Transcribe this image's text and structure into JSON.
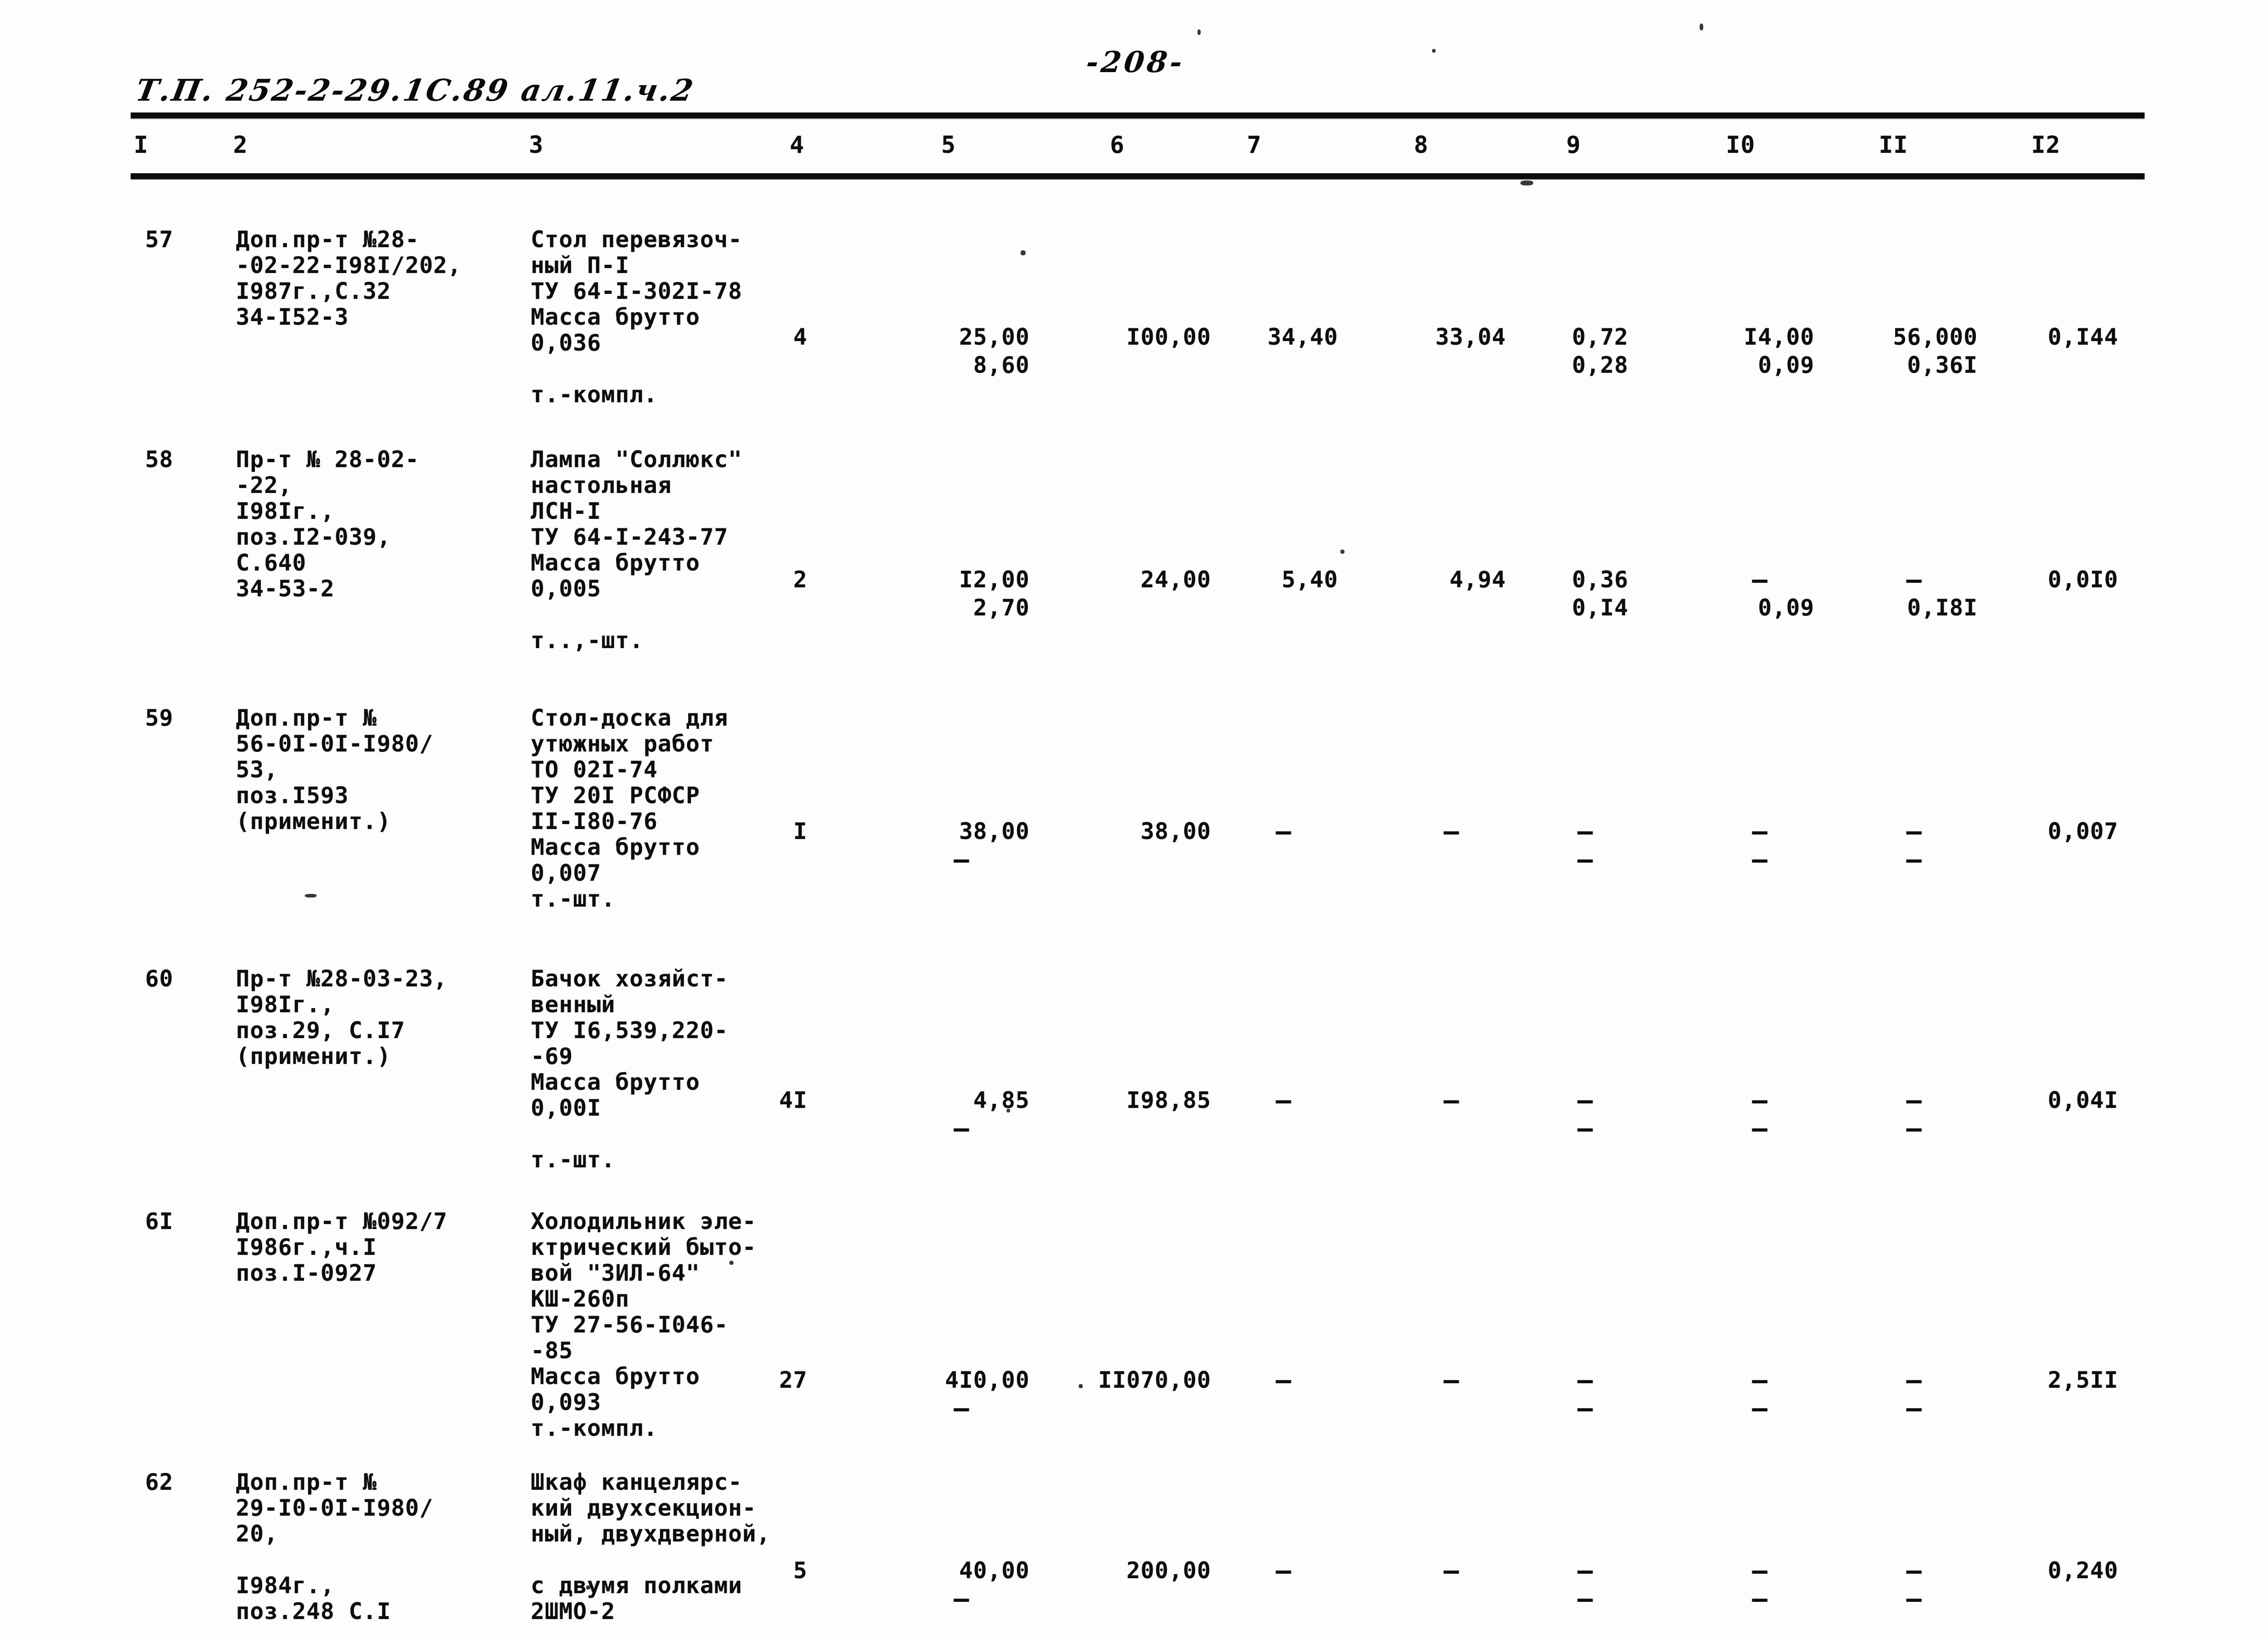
{
  "page": {
    "stamp_text": "Т.П. 252-2-29.1С.89 ал.11.ч.2",
    "page_number": "-208-"
  },
  "table": {
    "column_headers": [
      "I",
      "2",
      "3",
      "4",
      "5",
      "6",
      "7",
      "8",
      "9",
      "I0",
      "II",
      "I2"
    ],
    "rows": [
      {
        "row_number": "57",
        "document_ref": [
          "Доп.пр-т №28-",
          "-02-22-I98I/202,",
          "I987г.,С.32",
          "34-I52-3"
        ],
        "item_description": [
          "Стол перевязоч-",
          "ный П-I",
          "ТУ 64-I-302I-78",
          "Масса брутто",
          "0,036",
          "",
          "т.-компл."
        ],
        "quantity": "4",
        "col5": [
          "25,00",
          "8,60"
        ],
        "col6": [
          "I00,00",
          ""
        ],
        "col7": [
          "34,40",
          ""
        ],
        "col8": [
          "33,04",
          ""
        ],
        "col9": [
          "0,72",
          "0,28"
        ],
        "col10": [
          "I4,00",
          "0,09"
        ],
        "col11": [
          "56,000",
          "0,36I"
        ],
        "col12": [
          "0,I44",
          ""
        ]
      },
      {
        "row_number": "58",
        "document_ref": [
          "Пр-т № 28-02-",
          "-22,",
          "I98Iг.,",
          "поз.I2-039,",
          "С.640",
          "34-53-2"
        ],
        "item_description": [
          "Лампа \"Соллюкс\"",
          "настольная",
          "ЛСН-I",
          "ТУ 64-I-243-77",
          "Масса брутто",
          "0,005",
          "",
          "т..,-шт."
        ],
        "quantity": "2",
        "col5": [
          "I2,00",
          "2,70"
        ],
        "col6": [
          "24,00",
          ""
        ],
        "col7": [
          "5,40",
          ""
        ],
        "col8": [
          "4,94",
          ""
        ],
        "col9": [
          "0,36",
          "0,I4"
        ],
        "col10": [
          "–",
          "0,09"
        ],
        "col11": [
          "–",
          "0,I8I"
        ],
        "col12": [
          "0,0I0",
          ""
        ]
      },
      {
        "row_number": "59",
        "document_ref": [
          "Доп.пр-т №",
          "56-0I-0I-I980/",
          "53,",
          "поз.I593",
          "(применит.)"
        ],
        "item_description": [
          "Стол-доска для",
          "утюжных работ",
          "ТО 02I-74",
          "ТУ 20I РСФСР",
          "II-I80-76",
          "Масса брутто",
          "0,007",
          "т.-шт."
        ],
        "quantity": "I",
        "col5": [
          "38,00",
          "–"
        ],
        "col6": [
          "38,00",
          ""
        ],
        "col7": [
          "–",
          ""
        ],
        "col8": [
          "–",
          ""
        ],
        "col9": [
          "–",
          "–"
        ],
        "col10": [
          "–",
          "–"
        ],
        "col11": [
          "–",
          "–"
        ],
        "col12": [
          "0,007",
          ""
        ]
      },
      {
        "row_number": "60",
        "document_ref": [
          "Пр-т №28-03-23,",
          "I98Iг.,",
          "поз.29, С.I7",
          "(применит.)"
        ],
        "item_description": [
          "Бачок хозяйст-",
          "венный",
          "ТУ I6,539,220-",
          "-69",
          "Масса брутто",
          "0,00I",
          "",
          "т.-шт."
        ],
        "quantity": "4I",
        "col5": [
          "4,85",
          "–"
        ],
        "col6": [
          "I98,85",
          ""
        ],
        "col7": [
          "–",
          ""
        ],
        "col8": [
          "–",
          ""
        ],
        "col9": [
          "–",
          "–"
        ],
        "col10": [
          "–",
          "–"
        ],
        "col11": [
          "–",
          "–"
        ],
        "col12": [
          "0,04I",
          ""
        ]
      },
      {
        "row_number": "6I",
        "document_ref": [
          "Доп.пр-т №092/7",
          "I986г.,ч.I",
          "поз.I-0927"
        ],
        "item_description": [
          "Холодильник эле-",
          "ктрический быто-",
          "вой \"ЗИЛ-64\"",
          "КШ-260п",
          "ТУ 27-56-I046-",
          "-85",
          "Масса брутто",
          "0,093",
          "т.-компл."
        ],
        "quantity": "27",
        "col5": [
          "4I0,00",
          "–"
        ],
        "col6": [
          "II070,00",
          ""
        ],
        "col7": [
          "–",
          ""
        ],
        "col8": [
          "–",
          ""
        ],
        "col9": [
          "–",
          "–"
        ],
        "col10": [
          "–",
          "–"
        ],
        "col11": [
          "–",
          "–"
        ],
        "col12": [
          "2,5II",
          ""
        ]
      },
      {
        "row_number": "62",
        "document_ref": [
          "Доп.пр-т №",
          "29-I0-0I-I980/",
          "20,",
          "",
          "I984г.,",
          "поз.248 С.I"
        ],
        "item_description": [
          "Шкаф канцелярс-",
          "кий двухсекцион-",
          "ный, двухдверной,",
          "",
          "с двумя полками",
          "2ШМО-2"
        ],
        "quantity": "5",
        "col5": [
          "40,00",
          "–"
        ],
        "col6": [
          "200,00",
          ""
        ],
        "col7": [
          "–",
          ""
        ],
        "col8": [
          "–",
          ""
        ],
        "col9": [
          "–",
          "–"
        ],
        "col10": [
          "–",
          "–"
        ],
        "col11": [
          "–",
          "–"
        ],
        "col12": [
          "0,240",
          ""
        ]
      }
    ]
  }
}
